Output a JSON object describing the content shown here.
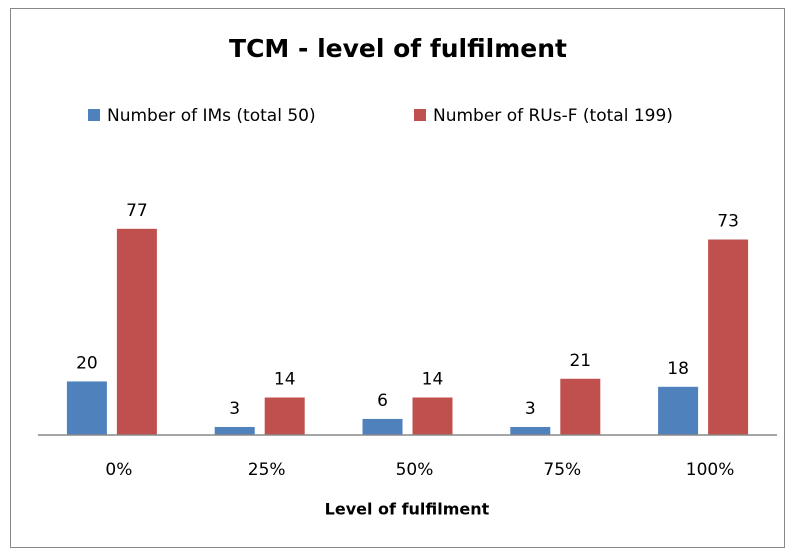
{
  "chart_data": {
    "type": "bar",
    "title": "TCM - level of fulfilment",
    "x_label": "Level of fulfilment",
    "categories": [
      "0%",
      "25%",
      "50%",
      "75%",
      "100%"
    ],
    "series": [
      {
        "name": "Number of IMs (total 50)",
        "color": "#4f81bd",
        "values": [
          20,
          3,
          6,
          3,
          18
        ]
      },
      {
        "name": "Number of RUs-F (total 199)",
        "color": "#c0504d",
        "values": [
          77,
          14,
          14,
          21,
          73
        ]
      }
    ],
    "ylim": [
      0,
      90
    ]
  }
}
